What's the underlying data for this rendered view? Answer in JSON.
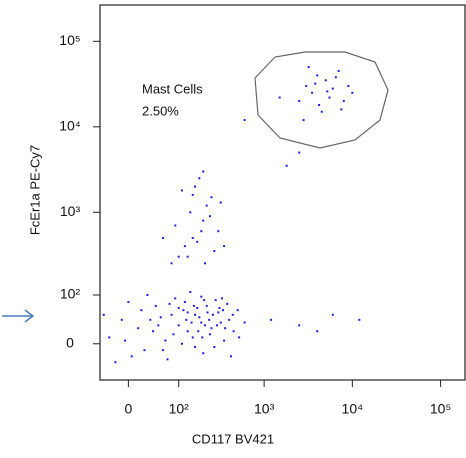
{
  "chart_data": {
    "type": "scatter",
    "scale": "biexponential",
    "xlabel": "CD117 BV421",
    "ylabel": "FcEr1a PE-Cy7",
    "gate": {
      "name": "Mast Cells",
      "percent": 2.5,
      "percent_label": "2.50%"
    },
    "color": "#1f1fd6",
    "xlim": [
      -47,
      189000
    ],
    "ylim": [
      -66,
      266000
    ],
    "xticks": [
      0,
      {
        "value": 100,
        "label": "10²"
      },
      {
        "value": 1000,
        "label": "10³"
      },
      {
        "value": 10000,
        "label": "10⁴"
      },
      {
        "value": 100000,
        "label": "10⁵"
      }
    ],
    "yticks": [
      0,
      {
        "value": 100,
        "label": "10²"
      },
      {
        "value": 1000,
        "label": "10³"
      },
      {
        "value": 10000,
        "label": "10⁴"
      },
      {
        "value": 100000,
        "label": "10⁵"
      }
    ],
    "x": [
      -30,
      -10,
      5,
      20,
      40,
      60,
      80,
      100,
      120,
      150,
      180,
      200,
      220,
      250,
      300,
      350,
      400,
      450,
      500,
      -20,
      0,
      30,
      70,
      90,
      130,
      160,
      190,
      240,
      280,
      320,
      380,
      420,
      15,
      45,
      110,
      140,
      170,
      210,
      260,
      330,
      -40,
      -5,
      25,
      55,
      85,
      115,
      145,
      175,
      205,
      235,
      270,
      310,
      360,
      440,
      520,
      600,
      50,
      75,
      125,
      155,
      195,
      225,
      290,
      340,
      190,
      160,
      130,
      100,
      65,
      35,
      100,
      150,
      200,
      250,
      180,
      120,
      300,
      220,
      160,
      90,
      270,
      140,
      350,
      210,
      110,
      190,
      130,
      240,
      170,
      80,
      60,
      320,
      200,
      150,
      2500,
      3000,
      3500,
      4000,
      5000,
      6000,
      7000,
      4500,
      8000,
      3200,
      5500,
      2800,
      9000,
      4200,
      6500,
      3800,
      5200,
      7500,
      1500,
      10000,
      600,
      1800,
      2500,
      2500,
      4000,
      6000,
      1200,
      12000
    ],
    "y": [
      10,
      40,
      -20,
      60,
      20,
      -10,
      50,
      30,
      80,
      10,
      45,
      -15,
      70,
      25,
      55,
      5,
      40,
      20,
      60,
      -30,
      80,
      100,
      -25,
      90,
      55,
      -5,
      95,
      15,
      85,
      35,
      75,
      -20,
      25,
      70,
      0,
      110,
      65,
      30,
      50,
      90,
      50,
      5,
      -10,
      45,
      15,
      60,
      35,
      20,
      85,
      40,
      -5,
      65,
      25,
      50,
      10,
      35,
      30,
      75,
      40,
      70,
      10,
      55,
      30,
      60,
      35,
      50,
      20,
      65,
      5,
      40,
      300,
      500,
      800,
      1500,
      2500,
      400,
      600,
      1200,
      2000,
      700,
      350,
      1000,
      400,
      250,
      1800,
      600,
      300,
      900,
      450,
      250,
      500,
      1300,
      3000,
      1600,
      20000,
      30000,
      25000,
      40000,
      35000,
      28000,
      45000,
      15000,
      20000,
      50000,
      22000,
      12000,
      30000,
      18000,
      38000,
      32000,
      26000,
      16000,
      22000,
      25000,
      12000,
      3500,
      5000,
      30,
      20,
      50,
      40,
      40
    ]
  }
}
